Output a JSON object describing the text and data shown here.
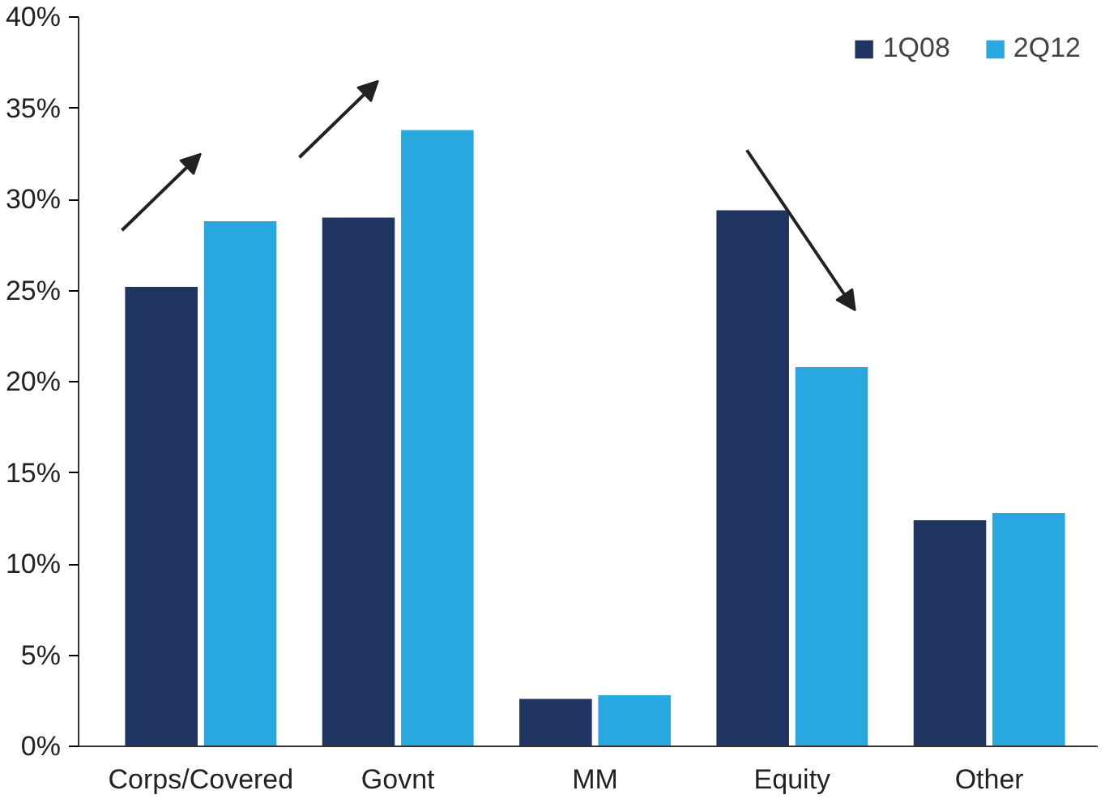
{
  "chart_data": {
    "type": "bar",
    "categories": [
      "Corps/Covered",
      "Govnt",
      "MM",
      "Equity",
      "Other"
    ],
    "series": [
      {
        "name": "1Q08",
        "color": "#1f3461",
        "values": [
          25.2,
          29.0,
          2.6,
          29.4,
          12.4
        ]
      },
      {
        "name": "2Q12",
        "color": "#29a8e0",
        "values": [
          28.8,
          33.8,
          2.8,
          20.8,
          12.8
        ]
      }
    ],
    "ylim": [
      0,
      40
    ],
    "yticks": [
      {
        "value": 0,
        "label": "0%"
      },
      {
        "value": 5,
        "label": "5%"
      },
      {
        "value": 10,
        "label": "10%"
      },
      {
        "value": 15,
        "label": "15%"
      },
      {
        "value": 20,
        "label": "20%"
      },
      {
        "value": 25,
        "label": "25%"
      },
      {
        "value": 30,
        "label": "30%"
      },
      {
        "value": 35,
        "label": "35%"
      },
      {
        "value": 40,
        "label": "40%"
      }
    ],
    "grid": false,
    "legend": "top right"
  }
}
